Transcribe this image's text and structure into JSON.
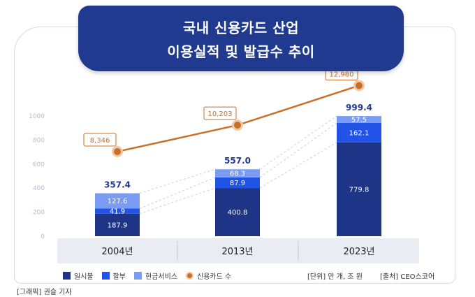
{
  "title": {
    "line1": "국내 신용카드 산업",
    "line2": "이용실적 및 발급수 추이"
  },
  "legend": {
    "items": [
      {
        "label": "일시불",
        "color": "#1e3486"
      },
      {
        "label": "할부",
        "color": "#2154e6"
      },
      {
        "label": "현금서비스",
        "color": "#7a9cf2"
      },
      {
        "label": "신용카드 수",
        "color": "#c96f2a"
      }
    ]
  },
  "unit_note": "[단위] 만 개, 조 원",
  "source_note": "[출처] CEO스코어",
  "credit": "[그래픽] 권슬 기자",
  "chart_data": {
    "type": "bar",
    "categories": [
      "2004년",
      "2013년",
      "2023년"
    ],
    "yticks": [
      "0",
      "200",
      "400",
      "600",
      "800",
      "1000"
    ],
    "ylim": [
      0,
      1000
    ],
    "series": [
      {
        "name": "일시불",
        "values": [
          187.9,
          400.8,
          779.8
        ],
        "labels": [
          "187.9",
          "400.8",
          "779.8"
        ],
        "color": "#1e3486"
      },
      {
        "name": "할부",
        "values": [
          41.9,
          87.9,
          162.1
        ],
        "labels": [
          "41.9",
          "87.9",
          "162.1"
        ],
        "color": "#2154e6"
      },
      {
        "name": "현금서비스",
        "values": [
          127.6,
          68.3,
          57.5
        ],
        "labels": [
          "127.6",
          "68.3",
          "57.5"
        ],
        "color": "#7a9cf2"
      }
    ],
    "totals": [
      "357.4",
      "557.0",
      "999.4"
    ],
    "line_series": {
      "name": "신용카드 수",
      "values": [
        8346,
        10203,
        12980
      ],
      "labels": [
        "8,346",
        "10,203",
        "12,980"
      ],
      "color": "#c96f2a"
    }
  }
}
